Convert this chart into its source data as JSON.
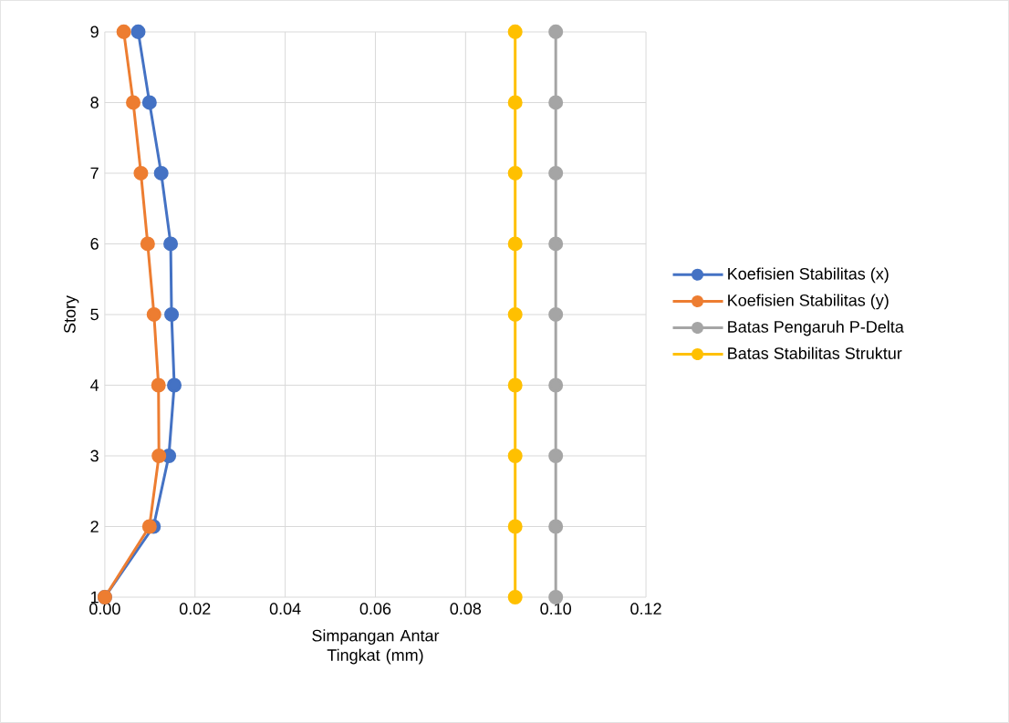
{
  "chart_data": {
    "type": "line",
    "xlabel": "Simpangan Antar Tingkat (mm)",
    "ylabel": "Story",
    "xlim": [
      0,
      0.12
    ],
    "ylim": [
      1,
      9
    ],
    "xticks": [
      {
        "value": 0,
        "label": "0.00"
      },
      {
        "value": 0.02,
        "label": "0.02"
      },
      {
        "value": 0.04,
        "label": "0.04"
      },
      {
        "value": 0.06,
        "label": "0.06"
      },
      {
        "value": 0.08,
        "label": "0.08"
      },
      {
        "value": 0.1,
        "label": "0.10"
      },
      {
        "value": 0.12,
        "label": "0.12"
      }
    ],
    "yticks": [
      1,
      2,
      3,
      4,
      5,
      6,
      7,
      8,
      9
    ],
    "grid": true,
    "legend": "right",
    "marker": "circle",
    "line_style": "solid",
    "series": [
      {
        "name": "Koefisien Stabilitas (x)",
        "color": "#4472c4",
        "x": [
          0,
          0.0108,
          0.0142,
          0.0154,
          0.0148,
          0.0146,
          0.0125,
          0.0099,
          0.0074
        ],
        "values": [
          1,
          2,
          3,
          4,
          5,
          6,
          7,
          8,
          9
        ]
      },
      {
        "name": "Koefisien Stabilitas (y)",
        "color": "#ed7d31",
        "x": [
          0,
          0.0099,
          0.012,
          0.0119,
          0.0109,
          0.0095,
          0.008,
          0.0063,
          0.0042
        ],
        "values": [
          1,
          2,
          3,
          4,
          5,
          6,
          7,
          8,
          9
        ]
      },
      {
        "name": "Batas Pengaruh P-Delta",
        "color": "#a5a5a5",
        "x": [
          0.1,
          0.1,
          0.1,
          0.1,
          0.1,
          0.1,
          0.1,
          0.1,
          0.1
        ],
        "values": [
          1,
          2,
          3,
          4,
          5,
          6,
          7,
          8,
          9
        ]
      },
      {
        "name": "Batas Stabilitas Struktur",
        "color": "#ffc000",
        "x": [
          0.091,
          0.091,
          0.091,
          0.091,
          0.091,
          0.091,
          0.091,
          0.091,
          0.091
        ],
        "values": [
          1,
          2,
          3,
          4,
          5,
          6,
          7,
          8,
          9
        ]
      }
    ]
  }
}
